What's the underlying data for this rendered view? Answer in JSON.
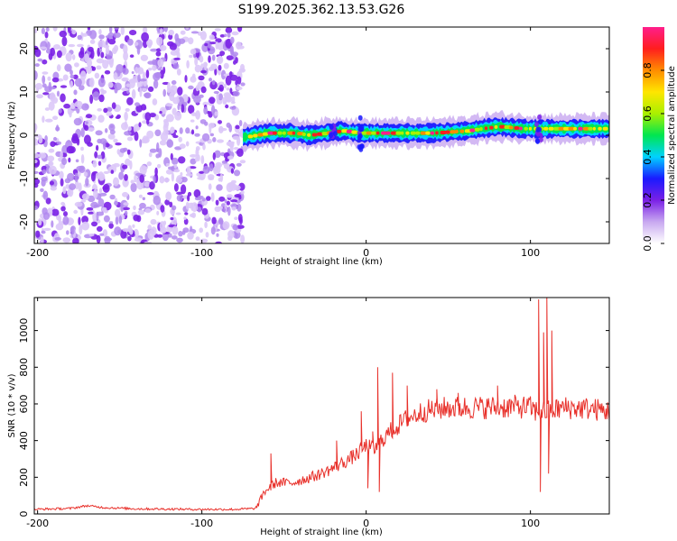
{
  "title": "S199.2025.362.13.53.G26",
  "chart_data": [
    {
      "type": "heatmap",
      "xlabel": "Height of straight line (km)",
      "ylabel": "Frequency (Hz)",
      "xlim": [
        -202,
        148
      ],
      "ylim": [
        -25,
        25
      ],
      "xticks": [
        -200,
        -100,
        0,
        100
      ],
      "yticks": [
        -20,
        -10,
        0,
        10,
        20
      ],
      "noise_region_x": [
        -202,
        -75
      ],
      "ridge": {
        "x": [
          -75,
          -60,
          -45,
          -35,
          -25,
          -15,
          -5,
          5,
          20,
          40,
          60,
          80,
          95,
          110,
          148
        ],
        "freq": [
          -0.5,
          0.5,
          0.5,
          0,
          0.5,
          1,
          0.5,
          0.5,
          0.5,
          0.5,
          1,
          2,
          1.5,
          1.5,
          1.5
        ]
      },
      "colorbar": {
        "label": "Normalized spectral amplitude",
        "range": [
          0,
          1
        ],
        "ticks": [
          0.0,
          0.2,
          0.4,
          0.6,
          0.8
        ],
        "colors": [
          "#ffffff",
          "#c8a8f0",
          "#7a20e6",
          "#1a1aff",
          "#00d2ff",
          "#00e650",
          "#aaf000",
          "#ffe600",
          "#ff8c00",
          "#ff1e1e",
          "#ff1e8c"
        ]
      }
    },
    {
      "type": "line",
      "xlabel": "Height of straight line (km)",
      "ylabel": "SNR (10 * v/v)",
      "xlim": [
        -202,
        148
      ],
      "ylim": [
        0,
        1180
      ],
      "xticks": [
        -200,
        -100,
        0,
        100
      ],
      "yticks": [
        0,
        200,
        400,
        600,
        800,
        1000
      ],
      "color": "#e8302a",
      "baseline": {
        "x": [
          -202,
          -180,
          -170,
          -160,
          -140,
          -100,
          -80,
          -67,
          -62,
          -55,
          -45,
          -30,
          -20,
          -10,
          -5,
          0,
          5,
          10,
          15,
          25,
          35,
          50,
          70,
          90,
          100,
          103,
          112,
          120,
          135,
          148
        ],
        "y": [
          25,
          30,
          45,
          35,
          28,
          25,
          25,
          30,
          120,
          170,
          170,
          210,
          250,
          300,
          330,
          370,
          350,
          410,
          450,
          520,
          560,
          580,
          580,
          585,
          580,
          560,
          560,
          580,
          575,
          560
        ]
      },
      "spikes": [
        {
          "x": -58,
          "y": 330
        },
        {
          "x": -18,
          "y": 400
        },
        {
          "x": -3,
          "y": 560
        },
        {
          "x": 1,
          "y": 140
        },
        {
          "x": 4,
          "y": 450
        },
        {
          "x": 7,
          "y": 800
        },
        {
          "x": 8,
          "y": 120
        },
        {
          "x": 16,
          "y": 770
        },
        {
          "x": 25,
          "y": 700
        },
        {
          "x": 43,
          "y": 680
        },
        {
          "x": 56,
          "y": 660
        },
        {
          "x": 80,
          "y": 700
        },
        {
          "x": 105,
          "y": 1170
        },
        {
          "x": 106,
          "y": 120
        },
        {
          "x": 108,
          "y": 990
        },
        {
          "x": 110,
          "y": 1180
        },
        {
          "x": 111,
          "y": 220
        },
        {
          "x": 113,
          "y": 1000
        }
      ]
    }
  ]
}
